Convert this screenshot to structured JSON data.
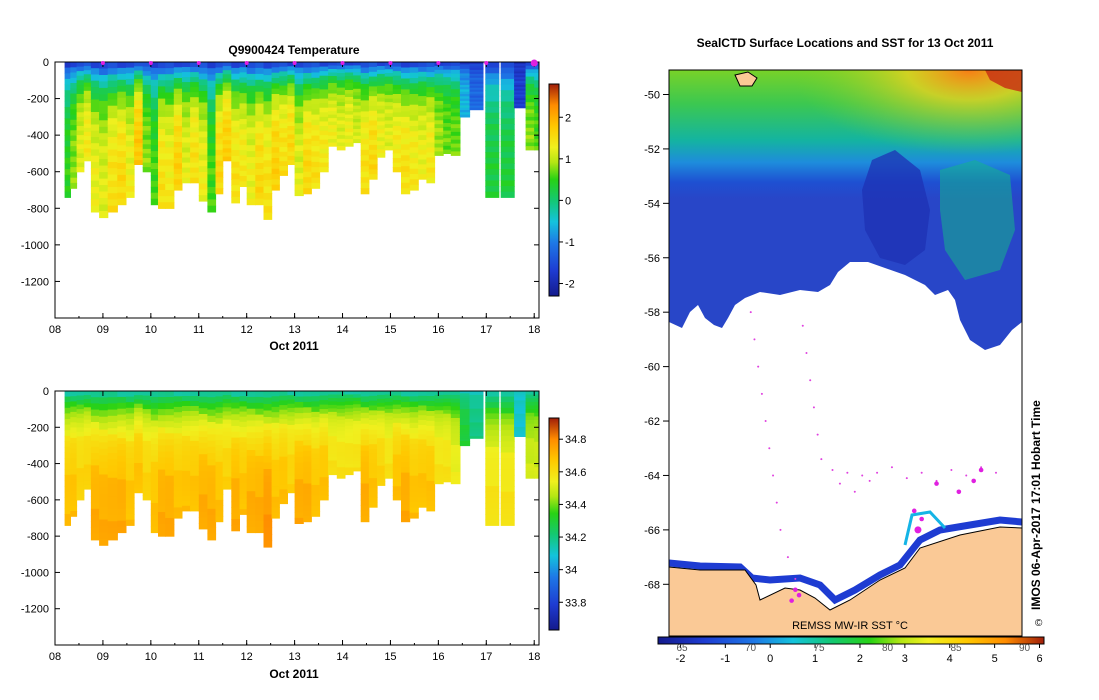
{
  "chart_data": [
    {
      "type": "heatmap",
      "id": "temperature",
      "title": "Q9900424  Temperature",
      "xlabel": "Oct 2011",
      "ylabel": "",
      "x_ticks": [
        "08",
        "09",
        "10",
        "11",
        "12",
        "13",
        "14",
        "15",
        "16",
        "17",
        "18"
      ],
      "x_range": [
        8,
        18.1
      ],
      "y_ticks": [
        0,
        -200,
        -400,
        -600,
        -800,
        -1000,
        -1200
      ],
      "y_range": [
        -1400,
        0
      ],
      "colorbar": {
        "ticks": [
          2,
          1,
          0,
          -1,
          -2
        ],
        "range": [
          -2.3,
          2.8
        ]
      },
      "markers_x": [
        9,
        10,
        11,
        12,
        13,
        14,
        15,
        16,
        17,
        18
      ]
    },
    {
      "type": "heatmap",
      "id": "salinity",
      "title": "",
      "xlabel": "Oct 2011",
      "ylabel": "",
      "x_ticks": [
        "08",
        "09",
        "10",
        "11",
        "12",
        "13",
        "14",
        "15",
        "16",
        "17",
        "18"
      ],
      "x_range": [
        8,
        18.1
      ],
      "y_ticks": [
        0,
        -200,
        -400,
        -600,
        -800,
        -1000,
        -1200
      ],
      "y_range": [
        -1400,
        0
      ],
      "colorbar": {
        "ticks": [
          34.8,
          34.6,
          34.4,
          34.2,
          34,
          33.8
        ],
        "range": [
          33.63,
          34.93
        ]
      }
    },
    {
      "type": "heatmap",
      "id": "sst_map",
      "title": "SealCTD Surface Locations and SST for 13 Oct 2011",
      "y_ticks": [
        -50,
        -52,
        -54,
        -56,
        -58,
        -60,
        -62,
        -64,
        -66,
        -68
      ],
      "y_range": [
        -69.9,
        -49.1
      ],
      "colorbar": {
        "label": "REMSS MW-IR SST °C",
        "ticks": [
          -2,
          -1,
          0,
          1,
          2,
          3,
          4,
          5,
          6
        ],
        "upper_ticks": [
          "65",
          "70",
          "75",
          "80",
          "85",
          "90"
        ],
        "range": [
          -2.5,
          6.1
        ]
      }
    }
  ],
  "profiles": [
    {
      "x": 8.2,
      "d": 740,
      "t": 0.5,
      "s": 34.7
    },
    {
      "x": 8.32,
      "d": 690,
      "t": 0.8,
      "s": 34.7
    },
    {
      "x": 8.45,
      "d": 600,
      "t": 1.2,
      "s": 34.65
    },
    {
      "x": 8.6,
      "d": 540,
      "t": 1.4,
      "s": 34.65
    },
    {
      "x": 8.75,
      "d": 820,
      "t": 1.3,
      "s": 34.75
    },
    {
      "x": 8.92,
      "d": 850,
      "t": 1.2,
      "s": 34.75
    },
    {
      "x": 9.1,
      "d": 820,
      "t": 1.5,
      "s": 34.75
    },
    {
      "x": 9.3,
      "d": 780,
      "t": 1.6,
      "s": 34.75
    },
    {
      "x": 9.48,
      "d": 740,
      "t": 1.3,
      "s": 34.7
    },
    {
      "x": 9.65,
      "d": 560,
      "t": 1.8,
      "s": 34.7
    },
    {
      "x": 9.83,
      "d": 600,
      "t": 0.8,
      "s": 34.65
    },
    {
      "x": 10.0,
      "d": 780,
      "t": 0.6,
      "s": 34.7
    },
    {
      "x": 10.15,
      "d": 800,
      "t": 1.5,
      "s": 34.75
    },
    {
      "x": 10.3,
      "d": 800,
      "t": 1.4,
      "s": 34.75
    },
    {
      "x": 10.48,
      "d": 700,
      "t": 1.7,
      "s": 34.7
    },
    {
      "x": 10.65,
      "d": 660,
      "t": 1.2,
      "s": 34.7
    },
    {
      "x": 10.82,
      "d": 660,
      "t": 1.5,
      "s": 34.7
    },
    {
      "x": 11.0,
      "d": 760,
      "t": 1.3,
      "s": 34.75
    },
    {
      "x": 11.18,
      "d": 820,
      "t": 0.6,
      "s": 34.75
    },
    {
      "x": 11.35,
      "d": 720,
      "t": 1.6,
      "s": 34.7
    },
    {
      "x": 11.5,
      "d": 540,
      "t": 1.7,
      "s": 34.65
    },
    {
      "x": 11.68,
      "d": 770,
      "t": 1.5,
      "s": 34.75
    },
    {
      "x": 11.85,
      "d": 680,
      "t": 1.4,
      "s": 34.7
    },
    {
      "x": 12.0,
      "d": 780,
      "t": 1.3,
      "s": 34.75
    },
    {
      "x": 12.18,
      "d": 780,
      "t": 1.6,
      "s": 34.75
    },
    {
      "x": 12.35,
      "d": 860,
      "t": 1.5,
      "s": 34.8
    },
    {
      "x": 12.52,
      "d": 700,
      "t": 1.7,
      "s": 34.7
    },
    {
      "x": 12.68,
      "d": 620,
      "t": 1.5,
      "s": 34.7
    },
    {
      "x": 12.85,
      "d": 560,
      "t": 1.6,
      "s": 34.65
    },
    {
      "x": 13.0,
      "d": 730,
      "t": 1.2,
      "s": 34.75
    },
    {
      "x": 13.18,
      "d": 720,
      "t": 1.6,
      "s": 34.75
    },
    {
      "x": 13.35,
      "d": 690,
      "t": 1.5,
      "s": 34.7
    },
    {
      "x": 13.52,
      "d": 600,
      "t": 1.4,
      "s": 34.7
    },
    {
      "x": 13.7,
      "d": 460,
      "t": 1.3,
      "s": 34.6
    },
    {
      "x": 13.88,
      "d": 480,
      "t": 1.2,
      "s": 34.6
    },
    {
      "x": 14.05,
      "d": 460,
      "t": 1.3,
      "s": 34.6
    },
    {
      "x": 14.22,
      "d": 440,
      "t": 1.1,
      "s": 34.6
    },
    {
      "x": 14.38,
      "d": 720,
      "t": 1.5,
      "s": 34.75
    },
    {
      "x": 14.55,
      "d": 640,
      "t": 1.6,
      "s": 34.7
    },
    {
      "x": 14.72,
      "d": 520,
      "t": 1.3,
      "s": 34.65
    },
    {
      "x": 14.88,
      "d": 480,
      "t": 1.2,
      "s": 34.6
    },
    {
      "x": 15.05,
      "d": 600,
      "t": 1.4,
      "s": 34.7
    },
    {
      "x": 15.22,
      "d": 720,
      "t": 1.5,
      "s": 34.75
    },
    {
      "x": 15.4,
      "d": 700,
      "t": 1.4,
      "s": 34.7
    },
    {
      "x": 15.58,
      "d": 640,
      "t": 1.3,
      "s": 34.7
    },
    {
      "x": 15.75,
      "d": 660,
      "t": 1.4,
      "s": 34.7
    },
    {
      "x": 15.92,
      "d": 510,
      "t": 0.9,
      "s": 34.6
    },
    {
      "x": 16.1,
      "d": 500,
      "t": 0.7,
      "s": 34.6
    },
    {
      "x": 16.26,
      "d": 510,
      "t": 0.7,
      "s": 34.55
    },
    {
      "x": 16.45,
      "d": 300,
      "t": -0.6,
      "s": 34.3
    },
    {
      "x": 16.65,
      "d": 260,
      "t": -1.2,
      "s": 34.2
    },
    {
      "x": 16.98,
      "d": 740,
      "t": 0.3,
      "s": 34.6
    },
    {
      "x": 17.3,
      "d": 740,
      "t": 0.3,
      "s": 34.6
    },
    {
      "x": 17.58,
      "d": 250,
      "t": -1.7,
      "s": 34.1
    },
    {
      "x": 17.82,
      "d": 480,
      "t": 0.8,
      "s": 34.5
    },
    {
      "x": 18.0,
      "d": 480,
      "t": 0.6,
      "s": 34.5
    }
  ],
  "track_points": [
    {
      "lon": 0.62,
      "lat": -58.0
    },
    {
      "lon": 0.63,
      "lat": -59.0
    },
    {
      "lon": 0.64,
      "lat": -60.0
    },
    {
      "lon": 0.65,
      "lat": -61.0
    },
    {
      "lon": 0.66,
      "lat": -62.0
    },
    {
      "lon": 0.67,
      "lat": -63.0
    },
    {
      "lon": 0.68,
      "lat": -64.0
    },
    {
      "lon": 0.69,
      "lat": -65.0
    },
    {
      "lon": 0.7,
      "lat": -66.0
    },
    {
      "lon": 0.72,
      "lat": -67.0
    },
    {
      "lon": 0.74,
      "lat": -67.8
    },
    {
      "lon": 0.76,
      "lat": -58.5
    },
    {
      "lon": 0.77,
      "lat": -59.5
    },
    {
      "lon": 0.78,
      "lat": -60.5
    },
    {
      "lon": 0.79,
      "lat": -61.5
    },
    {
      "lon": 0.8,
      "lat": -62.5
    },
    {
      "lon": 0.81,
      "lat": -63.4
    },
    {
      "lon": 0.84,
      "lat": -63.8
    },
    {
      "lon": 0.88,
      "lat": -63.9
    },
    {
      "lon": 0.92,
      "lat": -64.0
    },
    {
      "lon": 0.96,
      "lat": -63.9
    },
    {
      "lon": 1.0,
      "lat": -63.7
    },
    {
      "lon": 1.04,
      "lat": -64.1
    },
    {
      "lon": 1.08,
      "lat": -63.9
    },
    {
      "lon": 1.12,
      "lat": -64.2
    },
    {
      "lon": 1.16,
      "lat": -63.8
    },
    {
      "lon": 1.2,
      "lat": -64.0
    },
    {
      "lon": 1.24,
      "lat": -63.7
    },
    {
      "lon": 1.28,
      "lat": -63.9
    },
    {
      "lon": 0.86,
      "lat": -64.3
    },
    {
      "lon": 0.9,
      "lat": -64.6
    },
    {
      "lon": 0.94,
      "lat": -64.2
    }
  ],
  "major_points": [
    {
      "lon": 1.06,
      "lat": -65.3
    },
    {
      "lon": 1.08,
      "lat": -65.6
    },
    {
      "lon": 1.07,
      "lat": -66.0
    },
    {
      "lon": 1.12,
      "lat": -64.3
    },
    {
      "lon": 1.18,
      "lat": -64.6
    },
    {
      "lon": 1.22,
      "lat": -64.2
    },
    {
      "lon": 1.24,
      "lat": -63.8
    },
    {
      "lon": 0.74,
      "lat": -68.2
    },
    {
      "lon": 0.75,
      "lat": -68.4
    },
    {
      "lon": 0.73,
      "lat": -68.6
    }
  ],
  "credit": "IMOS 06-Apr-2017 17:01 Hobart Time",
  "copyright": "©"
}
